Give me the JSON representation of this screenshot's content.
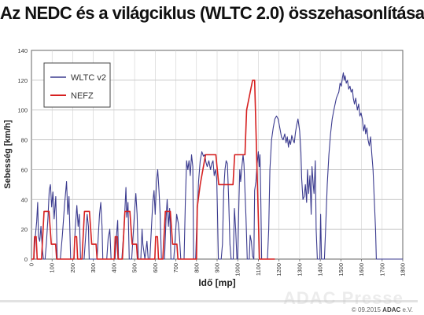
{
  "chart_data": {
    "type": "line",
    "title": "Az NEDC és a világciklus (WLTC 2.0) összehasonlítása",
    "xlabel": "Idő [mp]",
    "ylabel": "Sebesség [km/h]",
    "xlim": [
      0,
      1800
    ],
    "ylim": [
      0,
      140
    ],
    "xticks": [
      0,
      100,
      200,
      300,
      400,
      500,
      600,
      700,
      800,
      900,
      1000,
      1100,
      1200,
      1300,
      1400,
      1500,
      1600,
      1700,
      1800
    ],
    "yticks": [
      0,
      20,
      40,
      60,
      80,
      100,
      120,
      140
    ],
    "grid": true,
    "legend_position": "top-left",
    "series": [
      {
        "name": "WLTC v2",
        "color": "#3b3b8f",
        "points": [
          [
            0,
            0
          ],
          [
            12,
            0
          ],
          [
            18,
            14
          ],
          [
            25,
            25
          ],
          [
            30,
            38
          ],
          [
            34,
            15
          ],
          [
            40,
            12
          ],
          [
            46,
            22
          ],
          [
            52,
            8
          ],
          [
            58,
            0
          ],
          [
            66,
            0
          ],
          [
            72,
            10
          ],
          [
            80,
            28
          ],
          [
            86,
            46
          ],
          [
            92,
            50
          ],
          [
            98,
            35
          ],
          [
            104,
            45
          ],
          [
            110,
            27
          ],
          [
            118,
            42
          ],
          [
            125,
            0
          ],
          [
            140,
            0
          ],
          [
            150,
            16
          ],
          [
            160,
            36
          ],
          [
            170,
            52
          ],
          [
            176,
            30
          ],
          [
            182,
            42
          ],
          [
            190,
            0
          ],
          [
            205,
            0
          ],
          [
            212,
            20
          ],
          [
            220,
            36
          ],
          [
            226,
            22
          ],
          [
            232,
            30
          ],
          [
            238,
            0
          ],
          [
            255,
            0
          ],
          [
            262,
            14
          ],
          [
            270,
            30
          ],
          [
            276,
            22
          ],
          [
            280,
            0
          ],
          [
            300,
            0
          ],
          [
            318,
            0
          ],
          [
            324,
            16
          ],
          [
            330,
            30
          ],
          [
            336,
            38
          ],
          [
            342,
            22
          ],
          [
            346,
            0
          ],
          [
            365,
            0
          ],
          [
            372,
            14
          ],
          [
            380,
            20
          ],
          [
            386,
            0
          ],
          [
            405,
            0
          ],
          [
            412,
            15
          ],
          [
            418,
            26
          ],
          [
            422,
            0
          ],
          [
            438,
            0
          ],
          [
            446,
            16
          ],
          [
            452,
            30
          ],
          [
            458,
            48
          ],
          [
            462,
            28
          ],
          [
            468,
            38
          ],
          [
            474,
            0
          ],
          [
            486,
            0
          ],
          [
            494,
            18
          ],
          [
            500,
            32
          ],
          [
            506,
            44
          ],
          [
            512,
            30
          ],
          [
            518,
            0
          ],
          [
            530,
            0
          ],
          [
            536,
            20
          ],
          [
            540,
            10
          ],
          [
            550,
            0
          ],
          [
            560,
            12
          ],
          [
            566,
            0
          ],
          [
            574,
            0
          ],
          [
            582,
            22
          ],
          [
            588,
            38
          ],
          [
            594,
            46
          ],
          [
            600,
            30
          ],
          [
            606,
            52
          ],
          [
            612,
            60
          ],
          [
            618,
            46
          ],
          [
            624,
            30
          ],
          [
            630,
            0
          ],
          [
            645,
            0
          ],
          [
            652,
            26
          ],
          [
            658,
            40
          ],
          [
            664,
            22
          ],
          [
            670,
            34
          ],
          [
            676,
            0
          ],
          [
            690,
            0
          ],
          [
            698,
            16
          ],
          [
            704,
            30
          ],
          [
            712,
            24
          ],
          [
            718,
            14
          ],
          [
            724,
            0
          ],
          [
            740,
            0
          ],
          [
            746,
            38
          ],
          [
            752,
            66
          ],
          [
            758,
            60
          ],
          [
            764,
            66
          ],
          [
            770,
            56
          ],
          [
            776,
            70
          ],
          [
            782,
            62
          ],
          [
            786,
            0
          ],
          [
            796,
            0
          ],
          [
            802,
            26
          ],
          [
            810,
            52
          ],
          [
            818,
            66
          ],
          [
            826,
            72
          ],
          [
            834,
            69
          ],
          [
            840,
            70
          ],
          [
            846,
            65
          ],
          [
            852,
            62
          ],
          [
            860,
            66
          ],
          [
            868,
            60
          ],
          [
            874,
            64
          ],
          [
            880,
            66
          ],
          [
            886,
            56
          ],
          [
            892,
            60
          ],
          [
            898,
            54
          ],
          [
            902,
            30
          ],
          [
            906,
            0
          ],
          [
            920,
            0
          ],
          [
            926,
            10
          ],
          [
            932,
            46
          ],
          [
            938,
            60
          ],
          [
            944,
            66
          ],
          [
            950,
            64
          ],
          [
            956,
            40
          ],
          [
            962,
            10
          ],
          [
            968,
            0
          ],
          [
            978,
            0
          ],
          [
            984,
            34
          ],
          [
            990,
            20
          ],
          [
            996,
            0
          ],
          [
            1000,
            0
          ],
          [
            1006,
            40
          ],
          [
            1010,
            60
          ],
          [
            1014,
            52
          ],
          [
            1020,
            62
          ],
          [
            1026,
            70
          ],
          [
            1030,
            64
          ],
          [
            1034,
            50
          ],
          [
            1040,
            28
          ],
          [
            1046,
            0
          ],
          [
            1056,
            0
          ],
          [
            1060,
            16
          ],
          [
            1066,
            12
          ],
          [
            1072,
            2
          ],
          [
            1078,
            0
          ],
          [
            1082,
            46
          ],
          [
            1088,
            52
          ],
          [
            1094,
            64
          ],
          [
            1100,
            72
          ],
          [
            1104,
            62
          ],
          [
            1108,
            70
          ],
          [
            1112,
            38
          ],
          [
            1116,
            0
          ],
          [
            1144,
            0
          ],
          [
            1150,
            20
          ],
          [
            1156,
            60
          ],
          [
            1164,
            80
          ],
          [
            1172,
            88
          ],
          [
            1180,
            94
          ],
          [
            1188,
            96
          ],
          [
            1196,
            94
          ],
          [
            1204,
            88
          ],
          [
            1212,
            82
          ],
          [
            1220,
            80
          ],
          [
            1228,
            84
          ],
          [
            1234,
            78
          ],
          [
            1240,
            82
          ],
          [
            1246,
            75
          ],
          [
            1250,
            80
          ],
          [
            1256,
            77
          ],
          [
            1262,
            83
          ],
          [
            1268,
            80
          ],
          [
            1274,
            78
          ],
          [
            1280,
            85
          ],
          [
            1286,
            90
          ],
          [
            1292,
            94
          ],
          [
            1300,
            86
          ],
          [
            1306,
            72
          ],
          [
            1310,
            54
          ],
          [
            1316,
            40
          ],
          [
            1322,
            42
          ],
          [
            1328,
            50
          ],
          [
            1334,
            38
          ],
          [
            1338,
            60
          ],
          [
            1344,
            44
          ],
          [
            1350,
            56
          ],
          [
            1356,
            30
          ],
          [
            1360,
            62
          ],
          [
            1366,
            50
          ],
          [
            1370,
            44
          ],
          [
            1376,
            66
          ],
          [
            1380,
            20
          ],
          [
            1386,
            0
          ],
          [
            1398,
            0
          ],
          [
            1402,
            30
          ],
          [
            1406,
            0
          ],
          [
            1420,
            0
          ],
          [
            1426,
            20
          ],
          [
            1434,
            50
          ],
          [
            1442,
            70
          ],
          [
            1450,
            84
          ],
          [
            1458,
            94
          ],
          [
            1466,
            100
          ],
          [
            1472,
            104
          ],
          [
            1478,
            108
          ],
          [
            1484,
            110
          ],
          [
            1490,
            112
          ],
          [
            1496,
            118
          ],
          [
            1502,
            116
          ],
          [
            1508,
            122
          ],
          [
            1512,
            125
          ],
          [
            1516,
            120
          ],
          [
            1520,
            123
          ],
          [
            1526,
            118
          ],
          [
            1532,
            120
          ],
          [
            1538,
            114
          ],
          [
            1544,
            116
          ],
          [
            1550,
            112
          ],
          [
            1556,
            114
          ],
          [
            1560,
            108
          ],
          [
            1566,
            104
          ],
          [
            1572,
            108
          ],
          [
            1580,
            100
          ],
          [
            1586,
            104
          ],
          [
            1592,
            96
          ],
          [
            1598,
            98
          ],
          [
            1604,
            94
          ],
          [
            1610,
            86
          ],
          [
            1616,
            90
          ],
          [
            1620,
            84
          ],
          [
            1626,
            88
          ],
          [
            1632,
            80
          ],
          [
            1638,
            76
          ],
          [
            1644,
            82
          ],
          [
            1650,
            70
          ],
          [
            1656,
            60
          ],
          [
            1662,
            40
          ],
          [
            1668,
            20
          ],
          [
            1672,
            0
          ],
          [
            1800,
            0
          ]
        ]
      },
      {
        "name": "NEFZ",
        "color": "#d62020",
        "points": [
          [
            0,
            0
          ],
          [
            11,
            0
          ],
          [
            15,
            15
          ],
          [
            23,
            15
          ],
          [
            28,
            0
          ],
          [
            49,
            0
          ],
          [
            61,
            32
          ],
          [
            85,
            32
          ],
          [
            96,
            10
          ],
          [
            117,
            10
          ],
          [
            122,
            0
          ],
          [
            206,
            0
          ],
          [
            210,
            15
          ],
          [
            219,
            15
          ],
          [
            224,
            0
          ],
          [
            245,
            0
          ],
          [
            257,
            32
          ],
          [
            281,
            32
          ],
          [
            292,
            10
          ],
          [
            313,
            10
          ],
          [
            318,
            0
          ],
          [
            402,
            0
          ],
          [
            406,
            15
          ],
          [
            415,
            15
          ],
          [
            420,
            0
          ],
          [
            441,
            0
          ],
          [
            453,
            32
          ],
          [
            477,
            32
          ],
          [
            488,
            10
          ],
          [
            509,
            10
          ],
          [
            514,
            0
          ],
          [
            598,
            0
          ],
          [
            602,
            15
          ],
          [
            611,
            15
          ],
          [
            616,
            0
          ],
          [
            637,
            0
          ],
          [
            649,
            32
          ],
          [
            673,
            32
          ],
          [
            684,
            10
          ],
          [
            705,
            10
          ],
          [
            710,
            0
          ],
          [
            800,
            0
          ],
          [
            804,
            35
          ],
          [
            818,
            50
          ],
          [
            844,
            70
          ],
          [
            894,
            70
          ],
          [
            908,
            50
          ],
          [
            977,
            50
          ],
          [
            985,
            70
          ],
          [
            1035,
            70
          ],
          [
            1043,
            100
          ],
          [
            1072,
            120
          ],
          [
            1082,
            120
          ],
          [
            1105,
            0
          ],
          [
            1180,
            0
          ]
        ]
      }
    ]
  },
  "footer": {
    "copyright": "© 09.2015",
    "brand": "ADAC",
    "suffix": " e.V."
  },
  "watermark": "ADAC Presse"
}
